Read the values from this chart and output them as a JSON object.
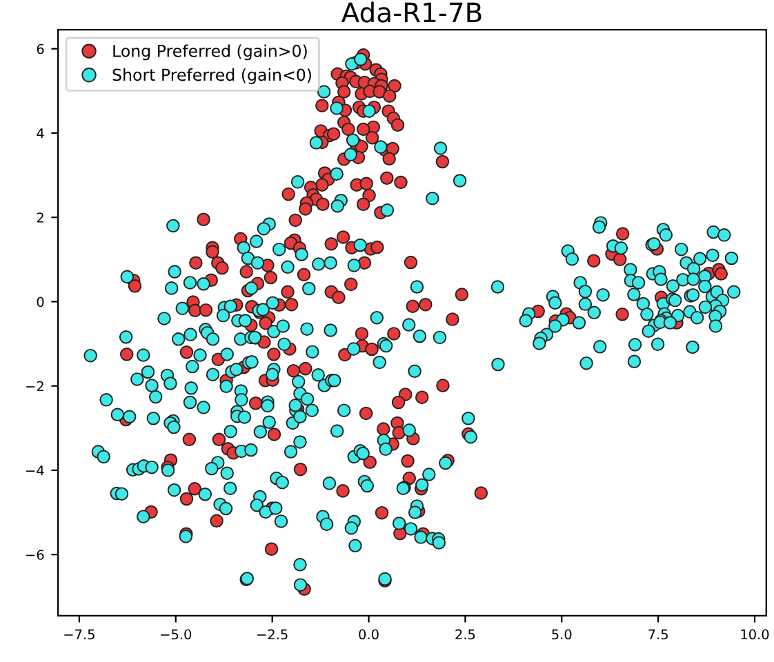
{
  "chart_data": {
    "type": "scatter",
    "title": "Ada-R1-7B",
    "legend": "top left",
    "marker": "circle",
    "grid": false,
    "xlim": [
      -8.05,
      10.3
    ],
    "ylim": [
      -7.45,
      6.45
    ],
    "xticks": [
      {
        "value": -7.5,
        "label": "−7.5"
      },
      {
        "value": -5,
        "label": "−5.0"
      },
      {
        "value": -2.5,
        "label": "−2.5"
      },
      {
        "value": 0,
        "label": "0.0"
      },
      {
        "value": 2.5,
        "label": "2.5"
      },
      {
        "value": 5,
        "label": "5.0"
      },
      {
        "value": 7.5,
        "label": "7.5"
      },
      {
        "value": 10,
        "label": "10.0"
      }
    ],
    "yticks": [
      -6,
      -4,
      -2,
      0,
      2,
      4,
      6
    ],
    "series": [
      {
        "name": "Long Preferred (gain>0)",
        "color": "#e8393b",
        "x": [
          -0.14,
          -0.09,
          -0.33,
          0.19,
          0.31,
          -0.81,
          -0.58,
          -0.47,
          0.33,
          -0.69,
          -0.33,
          -0.11,
          0.14,
          0.67,
          0.33,
          -0.64,
          -0.19,
          0.03,
          0.28,
          0.54,
          -0.78,
          -1.21,
          -0.61,
          -0.25,
          0.14,
          -0.14,
          0.51,
          0.64,
          0.75,
          -0.64,
          0.12,
          -0.14,
          -0.53,
          -1.24,
          -1.02,
          -0.91,
          0.09,
          -1.21,
          -0.33,
          -0.19,
          0.42,
          0.62,
          -0.64,
          -0.27,
          0.53,
          1.91,
          -1.14,
          -1.05,
          0.47,
          0.83,
          -1.21,
          -0.31,
          -0.06,
          -1.5,
          -2.08,
          -1.44,
          0.01,
          -1.36,
          -1.61,
          -1.19,
          -0.14,
          -1.64,
          0.31,
          -1.9,
          -1.92,
          -2.02,
          -0.66,
          -0.97,
          -0.44,
          0.05,
          0.22,
          -1.79,
          -0.11,
          1.09,
          -1.68,
          -0.46,
          -2.1,
          -0.97,
          -0.78,
          2.41,
          -2.0,
          -2.32,
          1.14,
          1.47,
          -4.28,
          -3.32,
          -4.05,
          -4.05,
          -3.91,
          -3.8,
          -4.48,
          -3.17,
          -2.62,
          -2.54,
          -2.88,
          -4.08,
          -6.09,
          -6.06,
          -3.13,
          -4.55,
          -4.5,
          -4.22,
          -3.43,
          -3.03,
          -2.82,
          -2.59,
          -3.05,
          -2.67,
          -2.93,
          -2.71,
          -2.05,
          -2.46,
          -4.72,
          -6.27,
          -3.9,
          -3.24,
          -1.95,
          -3.69,
          -2.68,
          -2.49,
          -2.93,
          -1.84,
          -6.29,
          -4.65,
          -3.88,
          -2.45,
          -3.65,
          -3.51,
          -5.13,
          -5.21,
          -1.77,
          -4.51,
          -4.72,
          -5.64,
          -3.94,
          -2.5,
          -4.73,
          -2.52,
          -3.17,
          2.17,
          -0.18,
          0.65,
          -0.17,
          0.08,
          -0.62,
          -1.64,
          1.92,
          0.95,
          1.38,
          0.77,
          -0.07,
          0.38,
          0.74,
          0.78,
          1.15,
          0.62,
          2.58,
          1.01,
          0.03,
          2.05,
          1.05,
          -0.67,
          1.36,
          0.92,
          2.91,
          0.34,
          1.29,
          0.81,
          1.41,
          -1.67,
          0.42,
          6.58,
          5.83,
          6.3,
          6.51,
          7.47,
          8.81,
          9.07,
          9.13,
          7.58,
          4.39,
          5.12,
          5.21,
          4.84,
          6.57,
          7.98
        ],
        "values": [
          5.85,
          5.64,
          5.67,
          5.5,
          5.4,
          5.4,
          5.35,
          5.32,
          5.27,
          5.19,
          5.22,
          5.2,
          5.17,
          5.12,
          5.12,
          4.98,
          4.93,
          4.99,
          4.98,
          4.88,
          4.73,
          4.65,
          4.54,
          4.61,
          4.61,
          4.52,
          4.52,
          4.35,
          4.19,
          4.25,
          4.14,
          4.09,
          4.09,
          4.05,
          3.94,
          3.98,
          3.89,
          3.78,
          3.74,
          3.68,
          3.6,
          3.63,
          3.38,
          3.42,
          3.39,
          3.32,
          3.05,
          2.9,
          2.93,
          2.83,
          2.77,
          2.77,
          2.8,
          2.71,
          2.55,
          2.53,
          2.52,
          2.43,
          2.34,
          2.31,
          2.31,
          2.2,
          2.11,
          1.93,
          1.46,
          1.39,
          1.53,
          1.37,
          1.28,
          1.25,
          1.29,
          1.27,
          0.92,
          0.93,
          0.64,
          0.41,
          0.23,
          0.23,
          0.1,
          0.17,
          -0.07,
          -0.08,
          -0.11,
          -0.07,
          1.95,
          1.49,
          1.28,
          1.18,
          0.92,
          0.8,
          0.92,
          0.71,
          0.86,
          0.57,
          0.43,
          0.51,
          0.5,
          0.37,
          0.26,
          -0.01,
          -0.21,
          -0.2,
          -0.08,
          -0.12,
          -0.26,
          -0.38,
          -0.56,
          -0.51,
          -0.86,
          -0.96,
          -1.12,
          -1.25,
          -1.2,
          -1.25,
          -1.37,
          -1.56,
          -1.64,
          -1.87,
          -1.87,
          -1.86,
          -2.41,
          -2.55,
          -2.8,
          -3.27,
          -3.27,
          -3.15,
          -3.49,
          -3.59,
          -3.76,
          -3.93,
          -3.98,
          -4.44,
          -4.68,
          -4.99,
          -5.2,
          -4.9,
          -5.51,
          -5.87,
          -6.59,
          -0.42,
          -0.76,
          -0.76,
          -1.05,
          -1.13,
          -1.26,
          -1.59,
          -1.99,
          -2.2,
          -2.27,
          -2.39,
          -2.65,
          -3.02,
          -2.88,
          -3.11,
          -3.25,
          -3.38,
          -3.14,
          -3.78,
          -3.81,
          -3.77,
          -4.19,
          -4.49,
          -4.44,
          -4.41,
          -4.54,
          -5.01,
          -4.97,
          -5.5,
          -5.51,
          -6.82,
          -6.62,
          1.61,
          0.97,
          1.13,
          1.0,
          1.25,
          0.67,
          0.76,
          0.66,
          0.1,
          -0.23,
          -0.29,
          -0.38,
          -0.46,
          -0.3,
          -0.5
        ]
      },
      {
        "name": "Short Preferred (gain<0)",
        "color": "#3ee8e6",
        "x": [
          -1.84,
          -5.07,
          -2.58,
          -2.72,
          -3.24,
          -2.91,
          -2.32,
          -3.13,
          -2.88,
          -2.1,
          -5.03,
          -4.63,
          -4.28,
          -6.26,
          -5.11,
          -3.04,
          -4.83,
          -5.3,
          -3.74,
          -3.58,
          -3.77,
          -3.39,
          -3.2,
          -2.85,
          -2.74,
          -2.49,
          -2.46,
          -2.22,
          -6.29,
          -4.93,
          -4.62,
          -4.23,
          -4.18,
          -4.04,
          -3.32,
          -3.05,
          -2.95,
          -7.21,
          -5.84,
          -4.37,
          -3.67,
          -4.57,
          -5.72,
          -3.55,
          -3.43,
          -3.11,
          -3.03,
          -2.46,
          -2.5,
          -5.22,
          -4.04,
          -6.0,
          -5.14,
          -5.62,
          -3.69,
          -3.31,
          -4.6,
          -1.82,
          -1.78,
          -5.52,
          -6.8,
          -3.3,
          -2.62,
          -2.62,
          -4.63,
          -4.28,
          -3.41,
          -6.51,
          -6.2,
          -5.58,
          -3.41,
          -3.22,
          -1.89,
          -5.07,
          -5.14,
          -5.05,
          -2.58,
          -1.97,
          -3.58,
          -2.81,
          -1.78,
          -7.01,
          -6.87,
          -3.91,
          -4.07,
          -3.3,
          -3.05,
          -2.02,
          -6.11,
          -5.96,
          -5.83,
          -5.62,
          -5.2,
          -3.67,
          -3.59,
          -2.39,
          -2.24,
          -6.53,
          -6.4,
          -5.04,
          -4.24,
          -2.82,
          -2.9,
          -3.85,
          -3.7,
          -2.67,
          -2.27,
          -5.84,
          -4.74,
          -1.78,
          -1.77,
          -3.15,
          -0.44,
          -0.21,
          -1.16,
          -0.83,
          0.01,
          -1.36,
          -0.41,
          0.31,
          -0.47,
          1.86,
          -0.83,
          2.36,
          1.65,
          -0.72,
          -0.81,
          0.48,
          -1.74,
          -0.22,
          -1.3,
          -0.99,
          -0.38,
          -1.55,
          1.25,
          3.34,
          0.21,
          -1.6,
          -0.99,
          1.04,
          1.32,
          1.84,
          -2.19,
          -1.46,
          -0.39,
          0.39,
          0.45,
          0.28,
          3.35,
          1.19,
          -1.31,
          -1.15,
          -0.96,
          -0.89,
          -1.59,
          -1.9,
          -1.47,
          -0.64,
          -1.78,
          -0.82,
          1.05,
          0.39,
          0.44,
          2.58,
          2.64,
          -0.38,
          -0.22,
          -0.15,
          1.99,
          1.56,
          0.89,
          1.38,
          -1.02,
          -0.11,
          -0.04,
          1.25,
          1.2,
          -1.19,
          -1.09,
          -0.38,
          -0.45,
          0.79,
          1.09,
          1.35,
          1.65,
          1.81,
          1.82,
          -0.35,
          0.42,
          -2.41,
          6.01,
          5.97,
          7.63,
          7.7,
          8.93,
          9.21,
          5.16,
          5.27,
          6.33,
          6.54,
          7.34,
          7.39,
          8.1,
          8.23,
          8.58,
          8.91,
          9.4,
          6.78,
          8.42,
          7.36,
          7.53,
          8.71,
          6.79,
          6.99,
          7.57,
          8.14,
          8.41,
          8.71,
          5.48,
          5.61,
          6.07,
          6.87,
          7.88,
          8.34,
          8.4,
          8.9,
          9.02,
          9.46,
          4.77,
          4.83,
          5.61,
          5.84,
          7.11,
          7.63,
          7.87,
          7.94,
          9.17,
          8.99,
          9.1,
          8.72,
          8.32,
          7.21,
          7.66,
          7.71,
          8.01,
          8.51,
          8.98,
          8.99,
          4.15,
          4.07,
          5.03,
          4.83,
          5.45,
          7.57,
          7.4,
          7.55,
          7.81,
          7.25,
          4.61,
          4.46,
          4.42,
          5.99,
          6.9,
          7.49,
          8.39,
          5.64,
          6.88
        ],
        "values": [
          2.84,
          1.8,
          1.84,
          1.73,
          1.28,
          1.43,
          1.24,
          1.03,
          0.92,
          0.82,
          0.71,
          0.45,
          0.42,
          0.59,
          0.32,
          0.32,
          -0.16,
          -0.4,
          -0.14,
          -0.11,
          -0.33,
          -0.45,
          -0.45,
          -0.21,
          -0.19,
          -0.03,
          -0.71,
          -0.58,
          -0.84,
          -0.89,
          -0.78,
          -0.66,
          -0.74,
          -0.89,
          -0.89,
          -0.85,
          -0.85,
          -1.28,
          -1.27,
          -1.27,
          -1.25,
          -1.54,
          -1.67,
          -1.66,
          -1.61,
          -1.45,
          -1.43,
          -1.61,
          -1.73,
          -1.75,
          -1.73,
          -1.84,
          -1.94,
          -1.99,
          -2.01,
          -2.12,
          -2.05,
          -1.9,
          -2.18,
          -2.26,
          -2.33,
          -2.33,
          -2.38,
          -2.47,
          -2.39,
          -2.51,
          -2.61,
          -2.68,
          -2.73,
          -2.77,
          -2.72,
          -2.74,
          -2.58,
          -2.83,
          -2.88,
          -2.98,
          -2.86,
          -2.88,
          -3.08,
          -3.09,
          -3.33,
          -3.56,
          -3.68,
          -3.82,
          -3.96,
          -3.55,
          -3.52,
          -3.56,
          -3.99,
          -3.97,
          -3.9,
          -3.93,
          -4.0,
          -4.07,
          -4.43,
          -4.19,
          -4.29,
          -4.55,
          -4.56,
          -4.47,
          -4.57,
          -4.63,
          -4.83,
          -4.81,
          -4.91,
          -4.99,
          -5.21,
          -5.1,
          -5.57,
          -6.24,
          -6.72,
          -6.57,
          5.64,
          5.75,
          4.98,
          4.59,
          4.52,
          3.77,
          3.83,
          3.67,
          3.49,
          3.64,
          3.03,
          2.87,
          2.45,
          2.4,
          2.27,
          2.17,
          1.12,
          1.34,
          0.89,
          0.92,
          0.86,
          0.31,
          0.35,
          0.35,
          -0.38,
          -0.65,
          -0.68,
          -0.55,
          -0.82,
          -0.85,
          -1.01,
          -1.19,
          -1.12,
          -1.0,
          -1.05,
          -1.44,
          -1.49,
          -1.65,
          -1.74,
          -1.99,
          -1.87,
          -1.87,
          -2.31,
          -2.46,
          -2.58,
          -2.58,
          -2.73,
          -3.07,
          -3.05,
          -3.29,
          -3.5,
          -2.77,
          -3.21,
          -3.68,
          -3.54,
          -3.6,
          -3.83,
          -4.1,
          -4.43,
          -4.35,
          -4.31,
          -4.27,
          -4.37,
          -4.85,
          -5.0,
          -5.1,
          -5.28,
          -5.22,
          -5.37,
          -5.26,
          -5.39,
          -5.59,
          -5.62,
          -5.63,
          -5.72,
          -5.79,
          -6.58,
          -4.9,
          1.87,
          1.77,
          1.71,
          1.58,
          1.65,
          1.58,
          1.2,
          1.01,
          1.32,
          1.27,
          1.35,
          1.37,
          1.24,
          0.92,
          1.02,
          1.1,
          1.03,
          0.76,
          0.78,
          0.66,
          0.71,
          0.6,
          0.5,
          0.45,
          0.53,
          0.52,
          0.53,
          0.36,
          0.45,
          0.24,
          0.16,
          0.17,
          0.37,
          0.14,
          0.16,
          0.12,
          0.23,
          0.23,
          0.12,
          -0.03,
          -0.06,
          -0.26,
          -0.05,
          -0.05,
          0.06,
          0.03,
          0.03,
          -0.1,
          -0.23,
          -0.13,
          -0.24,
          -0.3,
          -0.29,
          -0.39,
          -0.33,
          -0.38,
          -0.35,
          -0.58,
          -0.29,
          -0.45,
          -0.43,
          -0.58,
          -0.5,
          -0.45,
          -0.56,
          -0.49,
          -0.5,
          -0.7,
          -0.78,
          -0.87,
          -0.99,
          -1.07,
          -1.02,
          -1.01,
          -1.08,
          -1.46,
          -1.42
        ]
      }
    ]
  }
}
